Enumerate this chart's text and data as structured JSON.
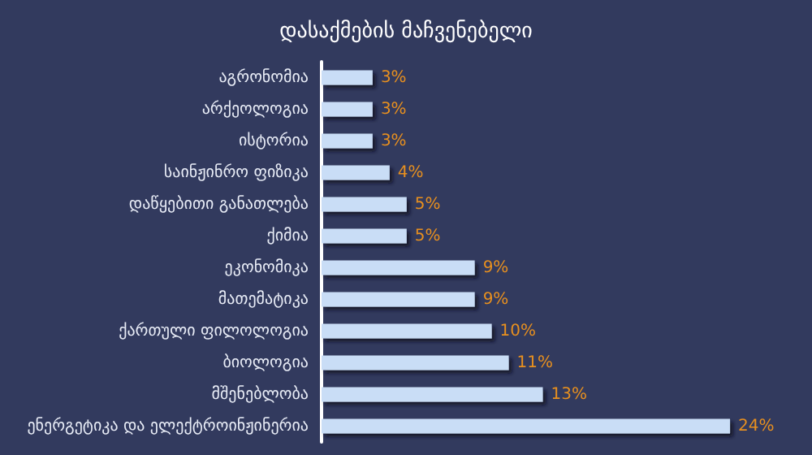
{
  "chart_data": {
    "type": "bar",
    "orientation": "horizontal",
    "title": "დასაქმების მაჩვენებელი",
    "categories": [
      "აგრონომია",
      "არქეოლოგია",
      "ისტორია",
      "საინჟინრო ფიზიკა",
      "დაწყებითი განათლება",
      "ქიმია",
      "ეკონომიკა",
      "მათემატიკა",
      "ქართული ფილოლოგია",
      "ბიოლოგია",
      "მშენებლობა",
      "ენერგეტიკა და ელექტროინჟინერია"
    ],
    "values": [
      3,
      3,
      3,
      4,
      5,
      5,
      9,
      9,
      10,
      11,
      13,
      24
    ],
    "value_labels": [
      "3%",
      "3%",
      "3%",
      "4%",
      "5%",
      "5%",
      "9%",
      "9%",
      "10%",
      "11%",
      "13%",
      "24%"
    ],
    "color": "#c9ddf6"
  }
}
